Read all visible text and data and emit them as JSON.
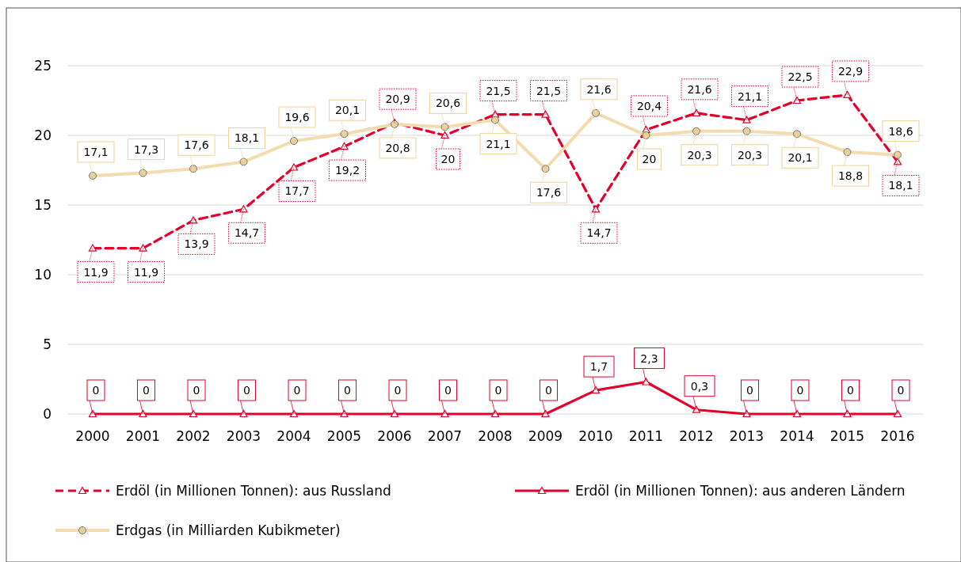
{
  "chart_data": {
    "type": "line",
    "categories": [
      "2000",
      "2001",
      "2002",
      "2003",
      "2004",
      "2005",
      "2006",
      "2007",
      "2008",
      "2009",
      "2010",
      "2011",
      "2012",
      "2013",
      "2014",
      "2015",
      "2016"
    ],
    "series": [
      {
        "name": "Erdöl (in Millionen Tonnen):  aus Russland",
        "color": "#e2002a",
        "line_style": "dashed",
        "marker": "triangle",
        "values": [
          11.9,
          11.9,
          13.9,
          14.7,
          17.7,
          19.2,
          20.9,
          20,
          21.5,
          21.5,
          14.7,
          20.4,
          21.6,
          21.1,
          22.5,
          22.9,
          18.1
        ],
        "value_labels": [
          "11,9",
          "11,9",
          "13,9",
          "14,7",
          "17,7",
          "19,2",
          "20,9",
          "20",
          "21,5",
          "21,5",
          "14,7",
          "20,4",
          "21,6",
          "21,1",
          "22,5",
          "22,9",
          "18,1"
        ]
      },
      {
        "name": "Erdöl (in Millionen Tonnen):  aus anderen Ländern",
        "color": "#e2002a",
        "line_style": "solid",
        "marker": "triangle",
        "values": [
          0,
          0,
          0,
          0,
          0,
          0,
          0,
          0,
          0,
          0,
          1.7,
          2.3,
          0.3,
          0,
          0,
          0,
          0
        ],
        "value_labels": [
          "0",
          "0",
          "0",
          "0",
          "0",
          "0",
          "0",
          "0",
          "0",
          "0",
          "1,7",
          "2,3",
          "0,3",
          "0",
          "0",
          "0",
          "0"
        ]
      },
      {
        "name": "Erdgas (in Milliarden Kubikmeter)",
        "color": "#f3dcae",
        "line_style": "solid",
        "marker": "circle",
        "values": [
          17.1,
          17.3,
          17.6,
          18.1,
          19.6,
          20.1,
          20.8,
          20.6,
          21.1,
          17.6,
          21.6,
          20,
          20.3,
          20.3,
          20.1,
          18.8,
          18.6
        ],
        "value_labels": [
          "17,1",
          "17,3",
          "17,6",
          "18,1",
          "19,6",
          "20,1",
          "20,8",
          "20,6",
          "21,1",
          "17,6",
          "21,6",
          "20",
          "20,3",
          "20,3",
          "20,1",
          "18,8",
          "18,6"
        ]
      }
    ],
    "ylim": [
      0,
      25
    ],
    "yticks": [
      0,
      5,
      10,
      15,
      20,
      25
    ],
    "grid": "y",
    "legend": "bottom"
  }
}
